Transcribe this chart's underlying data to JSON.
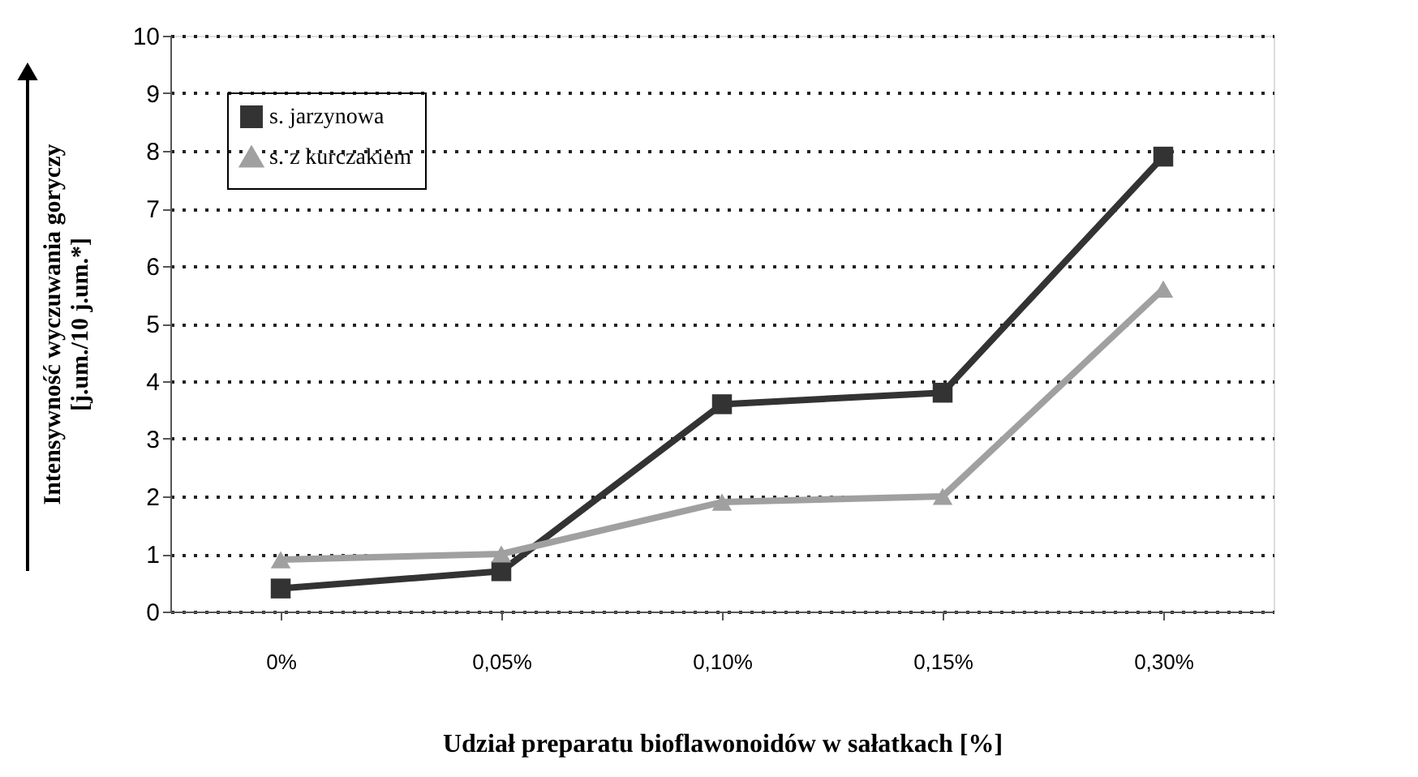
{
  "chart_data": {
    "type": "line",
    "xlabel": "Udział preparatu bioflawonoidów w sałatkach [%]",
    "ylabel": "Intensywność wyczuwania  goryczy\n[j.um./10 j.um.*]",
    "categories": [
      "0%",
      "0,05%",
      "0,10%",
      "0,15%",
      "0,30%"
    ],
    "series": [
      {
        "name": "s. jarzynowa",
        "color": "#333333",
        "marker": "square",
        "values": [
          0.4,
          0.7,
          3.6,
          3.8,
          7.9
        ]
      },
      {
        "name": "s. z kurczakiem",
        "color": "#a0a0a0",
        "marker": "triangle",
        "values": [
          0.9,
          1.0,
          1.9,
          2.0,
          5.6
        ]
      }
    ],
    "ylim": [
      0,
      10
    ],
    "yticks": [
      0,
      1,
      2,
      3,
      4,
      5,
      6,
      7,
      8,
      9,
      10
    ],
    "grid": "y",
    "legend": "top left",
    "line_style": "solid"
  }
}
